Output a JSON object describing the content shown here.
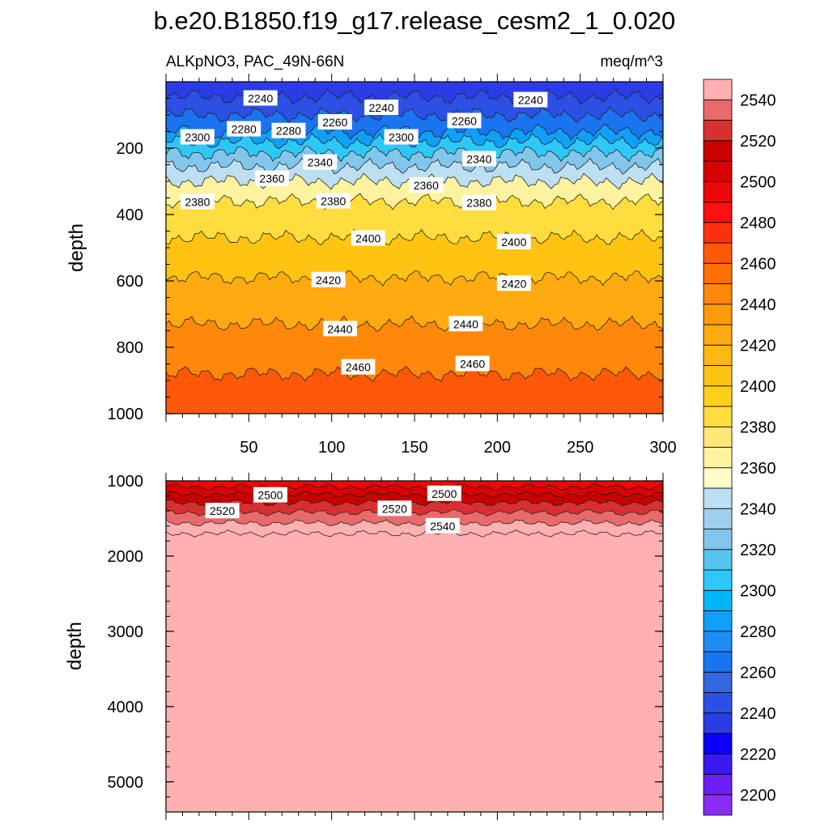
{
  "title": "b.e20.B1850.f19_g17.release_cesm2_1_0.020",
  "chart_data": {
    "type": "contour",
    "subtitle_left": "ALKpNO3, PAC_49N-66N",
    "subtitle_right": "meq/m^3",
    "xlabel": "",
    "ylabel": "depth",
    "xlim": [
      0,
      300
    ],
    "x_ticks": [
      "50",
      "100",
      "150",
      "200",
      "250",
      "300"
    ],
    "upper_panel": {
      "ylim": [
        0,
        1000
      ],
      "y_ticks": [
        "200",
        "400",
        "600",
        "800",
        "1000"
      ],
      "isolines": [
        {
          "level": 2240,
          "depth": 45
        },
        {
          "level": 2260,
          "depth": 100
        },
        {
          "level": 2280,
          "depth": 150
        },
        {
          "level": 2300,
          "depth": 180
        },
        {
          "level": 2320,
          "depth": 215
        },
        {
          "level": 2340,
          "depth": 255
        },
        {
          "level": 2360,
          "depth": 300
        },
        {
          "level": 2380,
          "depth": 360
        },
        {
          "level": 2400,
          "depth": 470
        },
        {
          "level": 2420,
          "depth": 590
        },
        {
          "level": 2440,
          "depth": 730
        },
        {
          "level": 2460,
          "depth": 880
        }
      ],
      "contour_labels": [
        {
          "text": "2240",
          "x": 57,
          "depth": 50
        },
        {
          "text": "2240",
          "x": 130,
          "depth": 78
        },
        {
          "text": "2240",
          "x": 220,
          "depth": 55
        },
        {
          "text": "2260",
          "x": 102,
          "depth": 122
        },
        {
          "text": "2260",
          "x": 180,
          "depth": 118
        },
        {
          "text": "2280",
          "x": 47,
          "depth": 143
        },
        {
          "text": "2280",
          "x": 74,
          "depth": 148
        },
        {
          "text": "2300",
          "x": 19,
          "depth": 167
        },
        {
          "text": "2300",
          "x": 142,
          "depth": 167
        },
        {
          "text": "2340",
          "x": 93,
          "depth": 243
        },
        {
          "text": "2340",
          "x": 189,
          "depth": 233
        },
        {
          "text": "2360",
          "x": 64,
          "depth": 292
        },
        {
          "text": "2360",
          "x": 157,
          "depth": 312
        },
        {
          "text": "2380",
          "x": 19,
          "depth": 362
        },
        {
          "text": "2380",
          "x": 101,
          "depth": 360
        },
        {
          "text": "2380",
          "x": 189,
          "depth": 365
        },
        {
          "text": "2400",
          "x": 122,
          "depth": 472
        },
        {
          "text": "2400",
          "x": 210,
          "depth": 483
        },
        {
          "text": "2420",
          "x": 98,
          "depth": 597
        },
        {
          "text": "2420",
          "x": 210,
          "depth": 608
        },
        {
          "text": "2440",
          "x": 105,
          "depth": 745
        },
        {
          "text": "2440",
          "x": 181,
          "depth": 730
        },
        {
          "text": "2460",
          "x": 116,
          "depth": 860
        },
        {
          "text": "2460",
          "x": 185,
          "depth": 850
        }
      ]
    },
    "lower_panel": {
      "ylim": [
        1000,
        5400
      ],
      "y_ticks": [
        "1000",
        "2000",
        "3000",
        "4000",
        "5000"
      ],
      "isolines": [
        {
          "level": 2500,
          "depth": 1080
        },
        {
          "level": 2510,
          "depth": 1180
        },
        {
          "level": 2520,
          "depth": 1290
        },
        {
          "level": 2530,
          "depth": 1420
        },
        {
          "level": 2540,
          "depth": 1560
        },
        {
          "level": 2550,
          "depth": 1700
        }
      ],
      "contour_labels": [
        {
          "text": "2500",
          "x": 63,
          "depth": 1190
        },
        {
          "text": "2500",
          "x": 168,
          "depth": 1170
        },
        {
          "text": "2520",
          "x": 34,
          "depth": 1400
        },
        {
          "text": "2520",
          "x": 138,
          "depth": 1370
        },
        {
          "text": "2540",
          "x": 167,
          "depth": 1600
        }
      ]
    },
    "colorbar": {
      "min": 2190,
      "max": 2560,
      "step": 10,
      "tick_labels": [
        "2200",
        "2220",
        "2240",
        "2260",
        "2280",
        "2300",
        "2320",
        "2340",
        "2360",
        "2380",
        "2400",
        "2420",
        "2440",
        "2460",
        "2480",
        "2500",
        "2520",
        "2540"
      ],
      "colors": [
        "#8b2cf5",
        "#6b1ef5",
        "#3a18f0",
        "#0c00f7",
        "#2a3ce6",
        "#2c50e4",
        "#3468e0",
        "#1a74f0",
        "#1f8cf5",
        "#10a0f8",
        "#00b8f8",
        "#2ec8f8",
        "#58c4f0",
        "#82c6ec",
        "#9fd0ee",
        "#bcdff2",
        "#fffcc8",
        "#fff3a0",
        "#ffe878",
        "#ffdd3e",
        "#ffd01a",
        "#ffc412",
        "#ffb812",
        "#ffaa10",
        "#ff9a0c",
        "#ff880a",
        "#ff7008",
        "#ff5808",
        "#ff3010",
        "#ff1010",
        "#ec0808",
        "#d80000",
        "#c80000",
        "#d83030",
        "#e86a6a",
        "#ffb0b0"
      ]
    }
  }
}
